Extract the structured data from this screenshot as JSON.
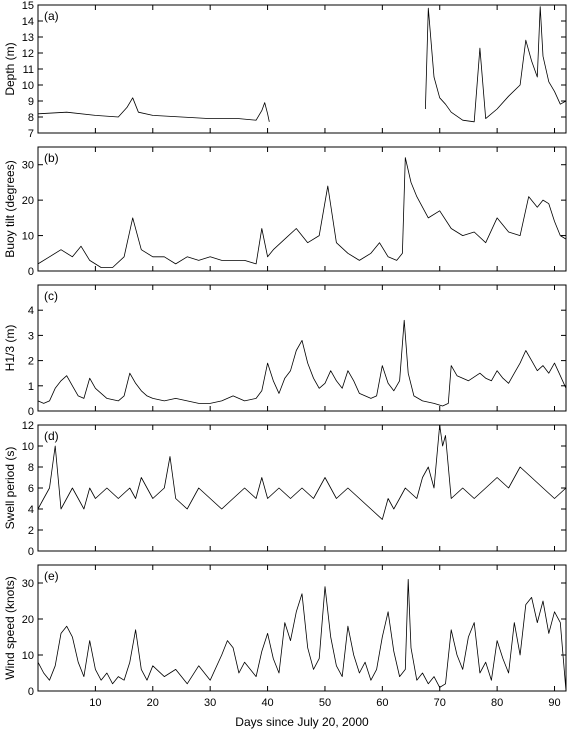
{
  "chart_data": [
    {
      "type": "line",
      "tag": "(a)",
      "ylabel": "Depth (m)",
      "xlim": [
        0,
        92
      ],
      "ylim": [
        7,
        15
      ],
      "yticks": [
        7,
        8,
        9,
        10,
        11,
        12,
        13,
        14,
        15
      ],
      "series": [
        {
          "x": [
            0,
            5,
            10,
            14,
            15.5,
            16.5,
            17.5,
            20,
            25,
            30,
            35,
            38,
            39,
            39.5,
            40,
            40.3,
            67.5,
            68,
            69,
            70,
            71,
            72,
            74,
            76,
            77,
            78,
            80,
            82,
            84,
            85,
            86,
            87,
            87.5,
            88,
            89,
            90,
            91,
            92
          ],
          "y": [
            8.2,
            8.3,
            8.1,
            8.0,
            8.6,
            9.2,
            8.3,
            8.1,
            8.0,
            7.9,
            7.9,
            7.8,
            8.4,
            8.9,
            8.2,
            7.7,
            8.5,
            14.8,
            10.5,
            9.2,
            8.8,
            8.3,
            7.8,
            7.7,
            12.3,
            7.9,
            8.5,
            9.3,
            10.0,
            12.8,
            11.5,
            10.5,
            14.9,
            11.8,
            10.2,
            9.6,
            8.8,
            9.0
          ]
        }
      ]
    },
    {
      "type": "line",
      "tag": "(b)",
      "ylabel": "Buoy tilt (degrees)",
      "xlim": [
        0,
        92
      ],
      "ylim": [
        0,
        35
      ],
      "yticks": [
        0,
        10,
        20,
        30
      ],
      "series": [
        {
          "x": [
            0,
            2,
            4,
            6,
            7.5,
            9,
            11,
            13,
            15,
            16.5,
            18,
            20,
            22,
            24,
            26,
            28,
            30,
            32,
            34,
            36,
            38,
            39,
            40,
            41,
            43,
            45,
            47,
            49,
            50.5,
            52,
            54,
            56,
            58,
            59.5,
            61,
            62.5,
            63.5,
            64,
            65,
            66,
            68,
            70,
            72,
            74,
            76,
            78,
            80,
            82,
            84,
            85.5,
            87,
            88,
            89,
            90,
            91,
            92
          ],
          "y": [
            2,
            4,
            6,
            4,
            7,
            3,
            1,
            1,
            4,
            15,
            6,
            4,
            4,
            2,
            4,
            3,
            4,
            3,
            3,
            3,
            2,
            12,
            4,
            6,
            9,
            12,
            8,
            10,
            24,
            8,
            5,
            3,
            5,
            8,
            4,
            3,
            5,
            32,
            25,
            21,
            15,
            17,
            12,
            10,
            11,
            8,
            15,
            11,
            10,
            21,
            18,
            20,
            19,
            14,
            10,
            9
          ]
        }
      ]
    },
    {
      "type": "line",
      "tag": "(c)",
      "ylabel": "H1/3 (m)",
      "xlim": [
        0,
        92
      ],
      "ylim": [
        0,
        5
      ],
      "yticks": [
        0,
        1,
        2,
        3,
        4
      ],
      "series": [
        {
          "x": [
            0,
            1,
            2,
            3,
            4,
            5,
            6,
            7,
            8,
            9,
            10,
            12,
            14,
            15,
            16,
            17,
            18,
            19,
            20,
            22,
            24,
            26,
            28,
            30,
            32,
            34,
            36,
            38,
            39,
            40,
            41,
            42,
            43,
            44,
            45,
            46,
            47,
            48,
            49,
            50,
            51,
            52,
            53,
            54,
            55,
            56,
            58,
            59,
            60,
            61,
            62,
            63,
            63.8,
            64.5,
            65.5,
            67,
            69,
            70.5,
            71.5,
            72,
            73,
            75,
            77,
            78,
            79,
            80,
            81,
            82,
            83,
            84,
            85,
            86,
            87,
            88,
            89,
            90,
            91,
            92
          ],
          "y": [
            0.4,
            0.3,
            0.4,
            0.9,
            1.2,
            1.4,
            1.0,
            0.6,
            0.5,
            1.3,
            0.9,
            0.5,
            0.4,
            0.6,
            1.5,
            1.1,
            0.8,
            0.6,
            0.5,
            0.4,
            0.5,
            0.4,
            0.3,
            0.3,
            0.4,
            0.6,
            0.4,
            0.5,
            0.8,
            1.9,
            1.2,
            0.7,
            1.3,
            1.6,
            2.4,
            2.8,
            1.9,
            1.3,
            0.9,
            1.1,
            1.6,
            1.2,
            0.9,
            1.6,
            1.2,
            0.7,
            0.5,
            0.6,
            1.8,
            1.1,
            0.8,
            1.2,
            3.6,
            1.5,
            0.6,
            0.4,
            0.3,
            0.2,
            0.3,
            1.8,
            1.4,
            1.2,
            1.5,
            1.3,
            1.2,
            1.6,
            1.3,
            1.1,
            1.5,
            1.9,
            2.4,
            2.0,
            1.6,
            1.8,
            1.5,
            1.9,
            1.4,
            0.9
          ]
        }
      ]
    },
    {
      "type": "line",
      "tag": "(d)",
      "ylabel": "Swell period (s)",
      "xlim": [
        0,
        92
      ],
      "ylim": [
        0,
        12
      ],
      "yticks": [
        0,
        2,
        4,
        6,
        8,
        10,
        12
      ],
      "series": [
        {
          "x": [
            0,
            1,
            2,
            3,
            4,
            5,
            6,
            7,
            8,
            9,
            10,
            12,
            14,
            16,
            17,
            18,
            20,
            22,
            23,
            24,
            26,
            28,
            30,
            32,
            34,
            36,
            38,
            39,
            40,
            42,
            44,
            46,
            48,
            50,
            52,
            54,
            56,
            58,
            60,
            61,
            62,
            63,
            64,
            66,
            67,
            68,
            69,
            70,
            70.5,
            71,
            72,
            74,
            76,
            78,
            80,
            82,
            84,
            86,
            88,
            90,
            92
          ],
          "y": [
            4,
            5,
            6,
            10,
            4,
            5,
            6,
            5,
            4,
            6,
            5,
            6,
            5,
            6,
            5,
            7,
            5,
            6,
            9,
            5,
            4,
            6,
            5,
            4,
            5,
            6,
            5,
            7,
            5,
            6,
            5,
            6,
            5,
            7,
            5,
            6,
            5,
            4,
            3,
            5,
            4,
            5,
            6,
            5,
            7,
            8,
            6,
            12,
            10,
            11,
            5,
            6,
            5,
            6,
            7,
            6,
            8,
            7,
            6,
            5,
            6
          ]
        }
      ]
    },
    {
      "type": "line",
      "tag": "(e)",
      "ylabel": "Wind speed (knots)",
      "xlabel": "Days since July 20, 2000",
      "xlim": [
        0,
        92
      ],
      "ylim": [
        0,
        35
      ],
      "yticks": [
        0,
        10,
        20,
        30
      ],
      "xticks": [
        10,
        20,
        30,
        40,
        50,
        60,
        70,
        80,
        90
      ],
      "series": [
        {
          "x": [
            0,
            1,
            2,
            3,
            4,
            5,
            6,
            7,
            8,
            9,
            10,
            11,
            12,
            13,
            14,
            15,
            16,
            17,
            18,
            19,
            20,
            22,
            24,
            26,
            28,
            30,
            32,
            33,
            34,
            35,
            36,
            38,
            39,
            40,
            41,
            42,
            43,
            44,
            45,
            46,
            47,
            48,
            49,
            50,
            51,
            52,
            53,
            54,
            55,
            56,
            57,
            58,
            59,
            60,
            61,
            62,
            63,
            64,
            64.5,
            65,
            66,
            67,
            68,
            69,
            70,
            71,
            72,
            73,
            74,
            75,
            76,
            77,
            78,
            79,
            80,
            81,
            82,
            83,
            84,
            85,
            86,
            87,
            88,
            89,
            90,
            91,
            92
          ],
          "y": [
            8,
            5,
            3,
            7,
            16,
            18,
            15,
            8,
            4,
            14,
            6,
            3,
            5,
            2,
            4,
            3,
            8,
            17,
            6,
            3,
            7,
            4,
            6,
            2,
            7,
            3,
            10,
            14,
            12,
            5,
            8,
            4,
            11,
            16,
            9,
            5,
            19,
            14,
            22,
            27,
            12,
            6,
            9,
            29,
            15,
            7,
            4,
            18,
            10,
            5,
            8,
            3,
            6,
            15,
            22,
            11,
            4,
            6,
            31,
            12,
            3,
            5,
            2,
            4,
            1,
            2,
            17,
            10,
            6,
            15,
            19,
            5,
            8,
            3,
            14,
            9,
            5,
            19,
            10,
            24,
            26,
            19,
            25,
            16,
            22,
            19,
            0
          ]
        }
      ]
    }
  ]
}
